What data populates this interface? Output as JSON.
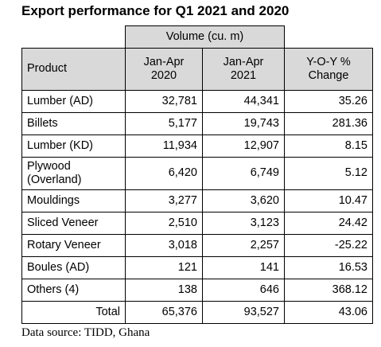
{
  "title": "Export performance for Q1 2021 and 2020",
  "table": {
    "volume_label": "Volume (cu. m)",
    "headers": {
      "product": "Product",
      "col2020_line1": "Jan-Apr",
      "col2020_line2": "2020",
      "col2021_line1": "Jan-Apr",
      "col2021_line2": "2021",
      "change_line1": "Y-O-Y %",
      "change_line2": "Change"
    },
    "rows": [
      {
        "product": "Lumber (AD)",
        "v2020": "32,781",
        "v2021": "44,341",
        "change": "35.26"
      },
      {
        "product": "Billets",
        "v2020": "5,177",
        "v2021": "19,743",
        "change": "281.36"
      },
      {
        "product": "Lumber (KD)",
        "v2020": "11,934",
        "v2021": "12,907",
        "change": "8.15"
      },
      {
        "product_line1": "Plywood",
        "product_line2": "(Overland)",
        "v2020": "6,420",
        "v2021": "6,749",
        "change": "5.12"
      },
      {
        "product": "Mouldings",
        "v2020": "3,277",
        "v2021": "3,620",
        "change": "10.47"
      },
      {
        "product": "Sliced Veneer",
        "v2020": "2,510",
        "v2021": "3,123",
        "change": "24.42"
      },
      {
        "product": "Rotary Veneer",
        "v2020": "3,018",
        "v2021": "2,257",
        "change": "-25.22"
      },
      {
        "product": "Boules (AD)",
        "v2020": "121",
        "v2021": "141",
        "change": "16.53"
      },
      {
        "product": "Others (4)",
        "v2020": "138",
        "v2021": "646",
        "change": "368.12"
      }
    ],
    "total": {
      "label": "Total",
      "v2020": "65,376",
      "v2021": "93,527",
      "change": "43.06"
    }
  },
  "source": "Data source: TIDD, Ghana"
}
